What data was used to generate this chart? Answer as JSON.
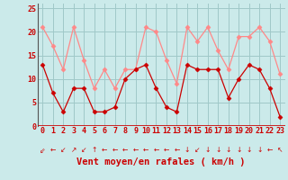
{
  "x": [
    0,
    1,
    2,
    3,
    4,
    5,
    6,
    7,
    8,
    9,
    10,
    11,
    12,
    13,
    14,
    15,
    16,
    17,
    18,
    19,
    20,
    21,
    22,
    23
  ],
  "moyen": [
    13,
    7,
    3,
    8,
    8,
    3,
    3,
    4,
    10,
    12,
    13,
    8,
    4,
    3,
    13,
    12,
    12,
    12,
    6,
    10,
    13,
    12,
    8,
    2
  ],
  "rafales": [
    21,
    17,
    12,
    21,
    14,
    8,
    12,
    8,
    12,
    12,
    21,
    20,
    14,
    9,
    21,
    18,
    21,
    16,
    12,
    19,
    19,
    21,
    18,
    11
  ],
  "bg_color": "#cbeaea",
  "grid_color": "#a0c8c8",
  "line_color_dark": "#cc0000",
  "line_color_light": "#ff8888",
  "xlabel": "Vent moyen/en rafales ( km/h )",
  "xlabel_color": "#cc0000",
  "xlabel_fontsize": 7.5,
  "tick_color": "#cc0000",
  "tick_fontsize": 6,
  "ylim": [
    0,
    26
  ],
  "yticks": [
    0,
    5,
    10,
    15,
    20,
    25
  ],
  "marker_size": 2.5,
  "marker": "D",
  "arrows": [
    "⇙",
    "←",
    "↙",
    "↗",
    "↙",
    "↑",
    "←",
    "←",
    "←",
    "←",
    "←",
    "←",
    "←",
    "←",
    "↓",
    "↙",
    "↓",
    "↓",
    "↓",
    "↓",
    "↓",
    "↓",
    "←",
    "↖"
  ]
}
